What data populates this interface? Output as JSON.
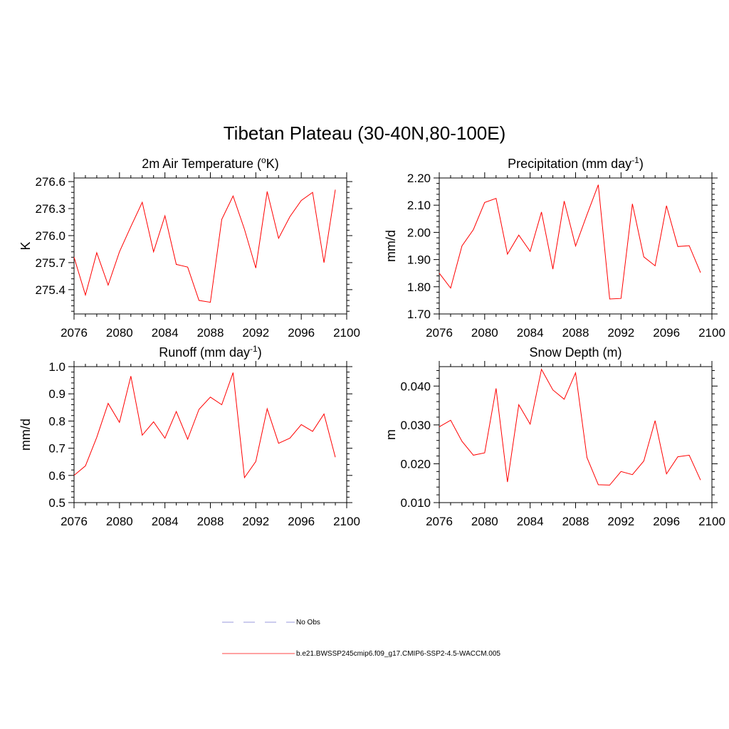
{
  "figure_title": "Tibetan Plateau (30-40N,80-100E)",
  "legend": {
    "entries": [
      {
        "label": "No Obs",
        "color": "#9999dd",
        "dash": "dashed"
      },
      {
        "label": "b.e21.BWSSP245cmip6.f09_g17.CMIP6-SSP2-4.5-WACCM.005",
        "color": "#ff4444",
        "dash": "solid"
      }
    ]
  },
  "chart_data": [
    {
      "type": "line",
      "title": "2m Air Temperature (",
      "title_sup": "o",
      "title_suffix": "K)",
      "xlabel": "",
      "ylabel": "K",
      "xlim": [
        2076,
        2100
      ],
      "ylim": [
        275.13,
        276.64
      ],
      "xticks": [
        2076,
        2080,
        2084,
        2088,
        2092,
        2096,
        2100
      ],
      "xtick_labels": [
        "2076",
        "2080",
        "2084",
        "2088",
        "2092",
        "2096",
        "2100"
      ],
      "yticks": [
        275.4,
        275.7,
        276.0,
        276.3,
        276.6
      ],
      "ytick_labels": [
        "275.4",
        "275.7",
        "276.0",
        "276.3",
        "276.6"
      ],
      "x": [
        2076,
        2077,
        2078,
        2079,
        2080,
        2081,
        2082,
        2083,
        2084,
        2085,
        2086,
        2087,
        2088,
        2089,
        2090,
        2091,
        2092,
        2093,
        2094,
        2095,
        2096,
        2097,
        2098,
        2099
      ],
      "series": [
        {
          "values": [
            275.76,
            275.34,
            275.81,
            275.45,
            275.82,
            276.1,
            276.37,
            275.82,
            276.22,
            275.68,
            275.65,
            275.28,
            275.26,
            276.18,
            276.44,
            276.07,
            275.64,
            276.49,
            275.97,
            276.21,
            276.39,
            276.48,
            275.7,
            276.51
          ]
        }
      ]
    },
    {
      "type": "line",
      "title": "Precipitation (mm day",
      "title_sup": "-1",
      "title_suffix": ")",
      "xlabel": "",
      "ylabel": "mm/d",
      "xlim": [
        2076,
        2100
      ],
      "ylim": [
        1.7,
        2.2
      ],
      "xticks": [
        2076,
        2080,
        2084,
        2088,
        2092,
        2096,
        2100
      ],
      "xtick_labels": [
        "2076",
        "2080",
        "2084",
        "2088",
        "2092",
        "2096",
        "2100"
      ],
      "yticks": [
        1.7,
        1.8,
        1.9,
        2.0,
        2.1,
        2.2
      ],
      "ytick_labels": [
        "1.70",
        "1.80",
        "1.90",
        "2.00",
        "2.10",
        "2.20"
      ],
      "x": [
        2076,
        2077,
        2078,
        2079,
        2080,
        2081,
        2082,
        2083,
        2084,
        2085,
        2086,
        2087,
        2088,
        2089,
        2090,
        2091,
        2092,
        2093,
        2094,
        2095,
        2096,
        2097,
        2098,
        2099
      ],
      "series": [
        {
          "values": [
            1.85,
            1.795,
            1.95,
            2.01,
            2.11,
            2.125,
            1.92,
            1.99,
            1.93,
            2.075,
            1.865,
            2.115,
            1.95,
            2.065,
            2.175,
            1.755,
            1.757,
            2.105,
            1.91,
            1.877,
            2.098,
            1.948,
            1.951,
            1.852
          ]
        }
      ]
    },
    {
      "type": "line",
      "title": "Runoff (mm day",
      "title_sup": "-1",
      "title_suffix": ")",
      "xlabel": "",
      "ylabel": "mm/d",
      "xlim": [
        2076,
        2100
      ],
      "ylim": [
        0.5,
        1.0
      ],
      "xticks": [
        2076,
        2080,
        2084,
        2088,
        2092,
        2096,
        2100
      ],
      "xtick_labels": [
        "2076",
        "2080",
        "2084",
        "2088",
        "2092",
        "2096",
        "2100"
      ],
      "yticks": [
        0.5,
        0.6,
        0.7,
        0.8,
        0.9,
        1.0
      ],
      "ytick_labels": [
        "0.5",
        "0.6",
        "0.7",
        "0.8",
        "0.9",
        "1.0"
      ],
      "x": [
        2076,
        2077,
        2078,
        2079,
        2080,
        2081,
        2082,
        2083,
        2084,
        2085,
        2086,
        2087,
        2088,
        2089,
        2090,
        2091,
        2092,
        2093,
        2094,
        2095,
        2096,
        2097,
        2098,
        2099
      ],
      "series": [
        {
          "values": [
            0.6,
            0.635,
            0.74,
            0.865,
            0.795,
            0.965,
            0.748,
            0.797,
            0.737,
            0.835,
            0.733,
            0.843,
            0.888,
            0.86,
            0.978,
            0.592,
            0.651,
            0.845,
            0.718,
            0.737,
            0.787,
            0.762,
            0.826,
            0.667
          ]
        }
      ]
    },
    {
      "type": "line",
      "title": "Snow Depth (m)",
      "title_sup": "",
      "title_suffix": "",
      "xlabel": "",
      "ylabel": "m",
      "xlim": [
        2076,
        2100
      ],
      "ylim": [
        0.01,
        0.045
      ],
      "xticks": [
        2076,
        2080,
        2084,
        2088,
        2092,
        2096,
        2100
      ],
      "xtick_labels": [
        "2076",
        "2080",
        "2084",
        "2088",
        "2092",
        "2096",
        "2100"
      ],
      "yticks": [
        0.01,
        0.02,
        0.03,
        0.04
      ],
      "ytick_labels": [
        "0.010",
        "0.020",
        "0.030",
        "0.040"
      ],
      "x": [
        2076,
        2077,
        2078,
        2079,
        2080,
        2081,
        2082,
        2083,
        2084,
        2085,
        2086,
        2087,
        2088,
        2089,
        2090,
        2091,
        2092,
        2093,
        2094,
        2095,
        2096,
        2097,
        2098,
        2099
      ],
      "series": [
        {
          "values": [
            0.0295,
            0.0312,
            0.0258,
            0.0222,
            0.0228,
            0.0394,
            0.0153,
            0.0352,
            0.0302,
            0.0443,
            0.039,
            0.0366,
            0.0434,
            0.0216,
            0.0146,
            0.0145,
            0.018,
            0.0172,
            0.0207,
            0.0311,
            0.0174,
            0.0218,
            0.0222,
            0.0158
          ]
        }
      ]
    }
  ]
}
